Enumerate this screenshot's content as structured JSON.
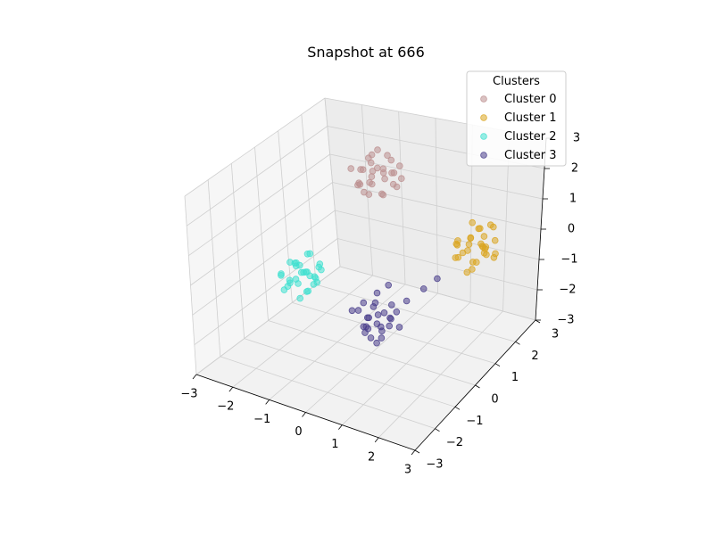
{
  "chart_data": {
    "type": "scatter",
    "title": "Snapshot at 666",
    "projection": "3d",
    "xlim": [
      -3,
      3
    ],
    "ylim": [
      -3,
      3
    ],
    "zlim": [
      -3,
      3
    ],
    "x_ticks": [
      "−3",
      "−2",
      "−1",
      "0",
      "1",
      "2",
      "3"
    ],
    "y_ticks": [
      "−3",
      "−2",
      "−1",
      "0",
      "1",
      "2",
      "3"
    ],
    "z_ticks": [
      "−3",
      "−2",
      "−1",
      "0",
      "1",
      "2",
      "3"
    ],
    "grid": true,
    "legend": {
      "title": "Clusters",
      "placement": "top-right"
    },
    "series": [
      {
        "name": "Cluster 0",
        "color": "#bc8f8f",
        "points": [
          [
            -1.1,
            1.9,
            1.4
          ],
          [
            -0.9,
            2.1,
            1.6
          ],
          [
            -1.3,
            1.7,
            1.2
          ],
          [
            -1.0,
            2.3,
            1.1
          ],
          [
            -0.7,
            1.8,
            1.7
          ],
          [
            -1.4,
            2.0,
            1.5
          ],
          [
            -0.8,
            2.4,
            1.3
          ],
          [
            -1.2,
            1.6,
            1.8
          ],
          [
            -0.6,
            2.2,
            1.0
          ],
          [
            -1.5,
            2.5,
            1.4
          ],
          [
            -0.9,
            1.5,
            1.5
          ],
          [
            -1.1,
            2.6,
            1.7
          ],
          [
            -0.5,
            1.9,
            1.3
          ],
          [
            -1.3,
            2.2,
            0.9
          ],
          [
            -0.8,
            1.7,
            1.9
          ],
          [
            -1.6,
            1.8,
            1.6
          ],
          [
            -0.7,
            2.5,
            1.5
          ],
          [
            -1.0,
            1.4,
            1.2
          ],
          [
            -1.2,
            2.1,
            2.0
          ],
          [
            -0.6,
            1.6,
            1.1
          ],
          [
            -1.4,
            2.4,
            1.2
          ],
          [
            -0.9,
            2.0,
            0.8
          ],
          [
            -1.1,
            1.8,
            2.1
          ],
          [
            -0.4,
            2.1,
            1.4
          ],
          [
            -1.5,
            1.9,
            1.0
          ],
          [
            -0.8,
            2.3,
            1.8
          ],
          [
            -1.0,
            1.6,
            1.0
          ],
          [
            -1.3,
            2.5,
            1.9
          ],
          [
            -0.6,
            2.0,
            1.6
          ],
          [
            -1.2,
            1.5,
            1.4
          ]
        ]
      },
      {
        "name": "Cluster 1",
        "color": "#daa520",
        "points": [
          [
            1.5,
            2.1,
            -0.3
          ],
          [
            1.7,
            2.4,
            -0.5
          ],
          [
            1.3,
            1.9,
            -0.1
          ],
          [
            1.6,
            2.6,
            -0.7
          ],
          [
            1.9,
            2.2,
            -0.4
          ],
          [
            1.4,
            2.7,
            -0.2
          ],
          [
            1.8,
            1.8,
            -0.6
          ],
          [
            1.2,
            2.3,
            -0.8
          ],
          [
            1.6,
            2.0,
            0.0
          ],
          [
            2.0,
            2.5,
            -0.3
          ],
          [
            1.5,
            2.8,
            -0.5
          ],
          [
            1.7,
            1.7,
            -0.9
          ],
          [
            1.3,
            2.5,
            -0.4
          ],
          [
            1.9,
            2.0,
            -0.1
          ],
          [
            1.4,
            2.2,
            -0.6
          ],
          [
            1.8,
            2.6,
            0.1
          ],
          [
            1.6,
            2.3,
            -1.0
          ],
          [
            1.2,
            2.0,
            -0.3
          ],
          [
            2.1,
            2.3,
            -0.7
          ],
          [
            1.5,
            1.6,
            -0.4
          ],
          [
            1.7,
            2.9,
            -0.2
          ],
          [
            1.4,
            2.4,
            0.2
          ],
          [
            1.9,
            2.7,
            -0.9
          ],
          [
            1.3,
            1.8,
            -0.6
          ],
          [
            1.8,
            2.4,
            -0.5
          ],
          [
            1.6,
            2.1,
            -1.1
          ],
          [
            1.5,
            2.6,
            -0.1
          ],
          [
            2.0,
            2.1,
            -0.5
          ],
          [
            1.1,
            2.2,
            -0.5
          ],
          [
            1.7,
            2.5,
            -0.8
          ]
        ]
      },
      {
        "name": "Cluster 2",
        "color": "#40e0d0",
        "points": [
          [
            -1.6,
            -0.4,
            -0.6
          ],
          [
            -1.8,
            -0.2,
            -0.8
          ],
          [
            -1.4,
            -0.6,
            -0.4
          ],
          [
            -1.7,
            0.0,
            -1.0
          ],
          [
            -1.5,
            -0.8,
            -0.7
          ],
          [
            -1.9,
            -0.5,
            -0.3
          ],
          [
            -1.3,
            -0.3,
            -0.9
          ],
          [
            -1.6,
            -1.0,
            -0.5
          ],
          [
            -2.0,
            -0.1,
            -0.6
          ],
          [
            -1.4,
            -0.9,
            -1.1
          ],
          [
            -1.7,
            -0.6,
            -0.2
          ],
          [
            -1.5,
            0.1,
            -0.7
          ],
          [
            -1.8,
            -0.8,
            -0.9
          ],
          [
            -1.2,
            -0.5,
            -0.6
          ],
          [
            -1.9,
            -0.3,
            -1.0
          ],
          [
            -1.6,
            -0.2,
            -0.1
          ],
          [
            -1.3,
            -0.7,
            -0.3
          ],
          [
            -1.7,
            -1.1,
            -0.8
          ],
          [
            -1.4,
            0.0,
            -0.5
          ],
          [
            -2.1,
            -0.6,
            -0.7
          ],
          [
            -1.5,
            -0.4,
            -1.2
          ],
          [
            -1.8,
            0.2,
            -0.4
          ],
          [
            -1.2,
            -0.9,
            -0.8
          ],
          [
            -1.6,
            -0.7,
            -0.2
          ],
          [
            -1.9,
            -0.9,
            -0.5
          ],
          [
            -1.4,
            -0.3,
            -1.0
          ],
          [
            -1.7,
            -0.4,
            -0.4
          ],
          [
            -1.5,
            -0.1,
            -0.9
          ],
          [
            -2.0,
            -0.4,
            -1.1
          ],
          [
            -1.3,
            -0.1,
            -0.6
          ]
        ]
      },
      {
        "name": "Cluster 3",
        "color": "#483d8b",
        "points": [
          [
            0.4,
            -0.3,
            -1.4
          ],
          [
            0.6,
            -0.5,
            -1.6
          ],
          [
            0.2,
            -0.1,
            -1.2
          ],
          [
            0.5,
            -0.8,
            -1.8
          ],
          [
            0.8,
            -0.4,
            -1.3
          ],
          [
            0.3,
            -0.6,
            -1.7
          ],
          [
            0.7,
            -0.2,
            -1.5
          ],
          [
            0.1,
            -0.7,
            -1.1
          ],
          [
            0.5,
            -0.3,
            -1.9
          ],
          [
            0.9,
            -0.6,
            -1.4
          ],
          [
            0.4,
            -0.9,
            -1.6
          ],
          [
            0.6,
            0.0,
            -1.2
          ],
          [
            0.2,
            -0.4,
            -1.5
          ],
          [
            0.8,
            -0.8,
            -1.7
          ],
          [
            0.3,
            -0.2,
            -1.8
          ],
          [
            0.7,
            -0.5,
            -1.1
          ],
          [
            0.5,
            -1.0,
            -1.3
          ],
          [
            0.1,
            -0.3,
            -1.6
          ],
          [
            1.0,
            -0.3,
            -1.6
          ],
          [
            0.4,
            -0.5,
            -1.0
          ],
          [
            0.6,
            -0.7,
            -2.0
          ],
          [
            -0.2,
            0.0,
            -1.4
          ],
          [
            0.8,
            -0.1,
            -1.3
          ],
          [
            0.3,
            -0.8,
            -1.5
          ],
          [
            1.2,
            0.5,
            -0.8
          ],
          [
            0.0,
            0.3,
            -1.2
          ],
          [
            -0.4,
            -0.2,
            -1.6
          ],
          [
            0.9,
            0.2,
            -1.1
          ],
          [
            1.4,
            0.8,
            -0.6
          ],
          [
            0.2,
            0.5,
            -1.0
          ]
        ]
      }
    ]
  }
}
